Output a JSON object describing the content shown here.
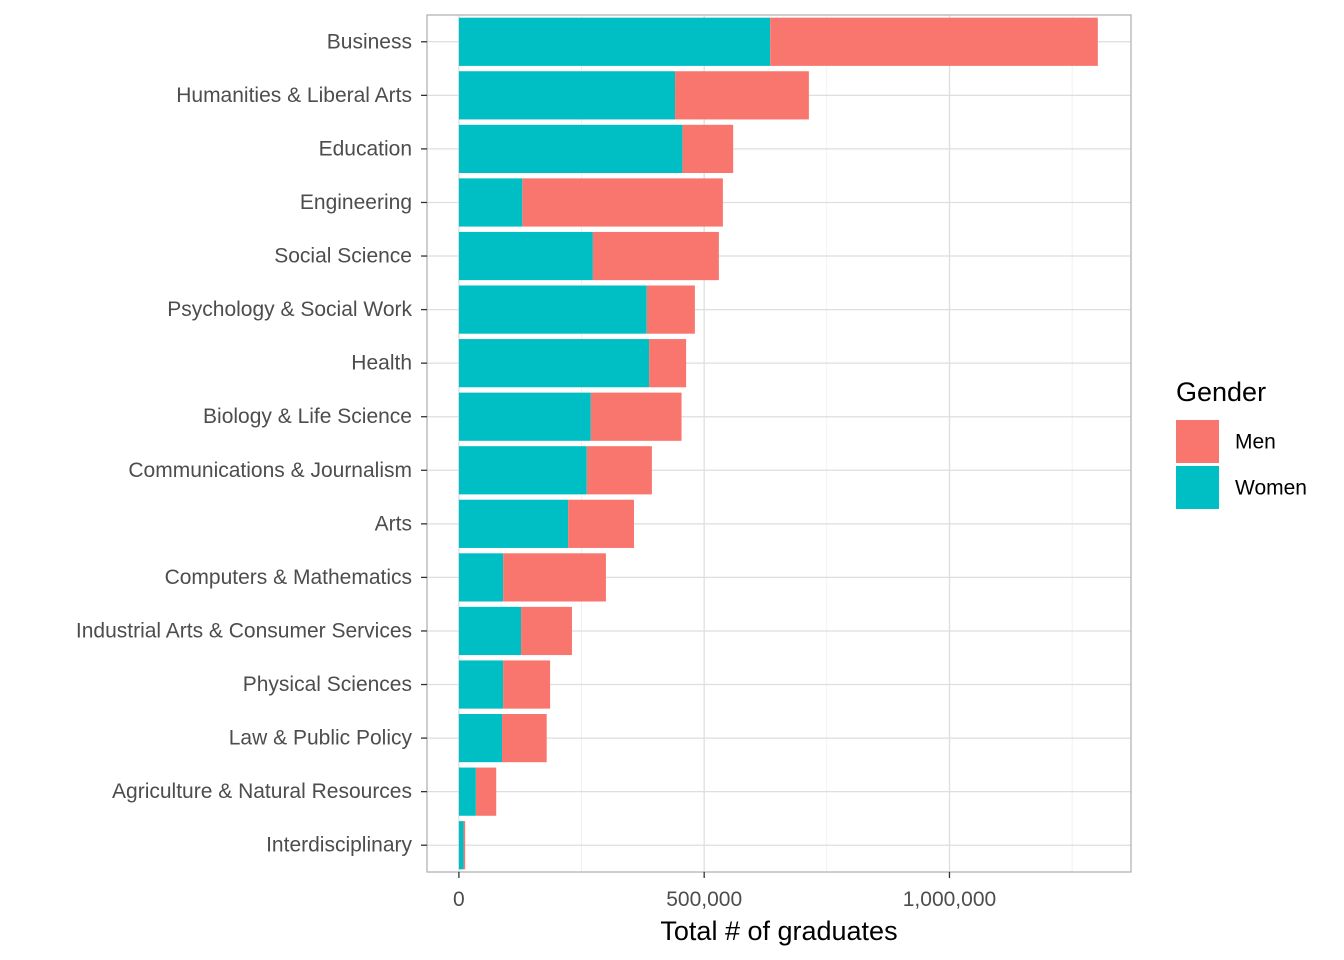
{
  "chart_data": {
    "type": "bar",
    "orientation": "horizontal",
    "stacked": true,
    "categories": [
      "Business",
      "Humanities & Liberal Arts",
      "Education",
      "Engineering",
      "Social Science",
      "Psychology & Social Work",
      "Health",
      "Biology & Life Science",
      "Communications & Journalism",
      "Arts",
      "Computers & Mathematics",
      "Industrial Arts & Consumer Services",
      "Physical Sciences",
      "Law & Public Policy",
      "Agriculture & Natural Resources",
      "Interdisciplinary"
    ],
    "series": [
      {
        "name": "Women",
        "color": "#00BFC4",
        "values": [
          634500,
          440600,
          455600,
          129300,
          273100,
          382900,
          387700,
          268900,
          260700,
          222700,
          90300,
          126700,
          90100,
          87900,
          34600,
          9500
        ]
      },
      {
        "name": "Men",
        "color": "#F8766D",
        "values": [
          667900,
          272800,
          103500,
          408800,
          256800,
          98100,
          75500,
          184900,
          132700,
          134200,
          209400,
          103800,
          95800,
          91100,
          41500,
          3300
        ]
      }
    ],
    "xlabel": "Total # of graduates",
    "ylabel": "",
    "xlim": [
      -65000,
      1370000
    ],
    "x_ticks": [
      0,
      500000,
      1000000
    ],
    "x_tick_labels": [
      "0",
      "500,000",
      "1,000,000"
    ],
    "x_minor_gridlines": [
      250000,
      750000,
      1250000
    ],
    "grid": true,
    "legend": {
      "title": "Gender",
      "placement": "right",
      "entries": [
        {
          "label": "Men",
          "color": "#F8766D"
        },
        {
          "label": "Women",
          "color": "#00BFC4"
        }
      ]
    }
  }
}
